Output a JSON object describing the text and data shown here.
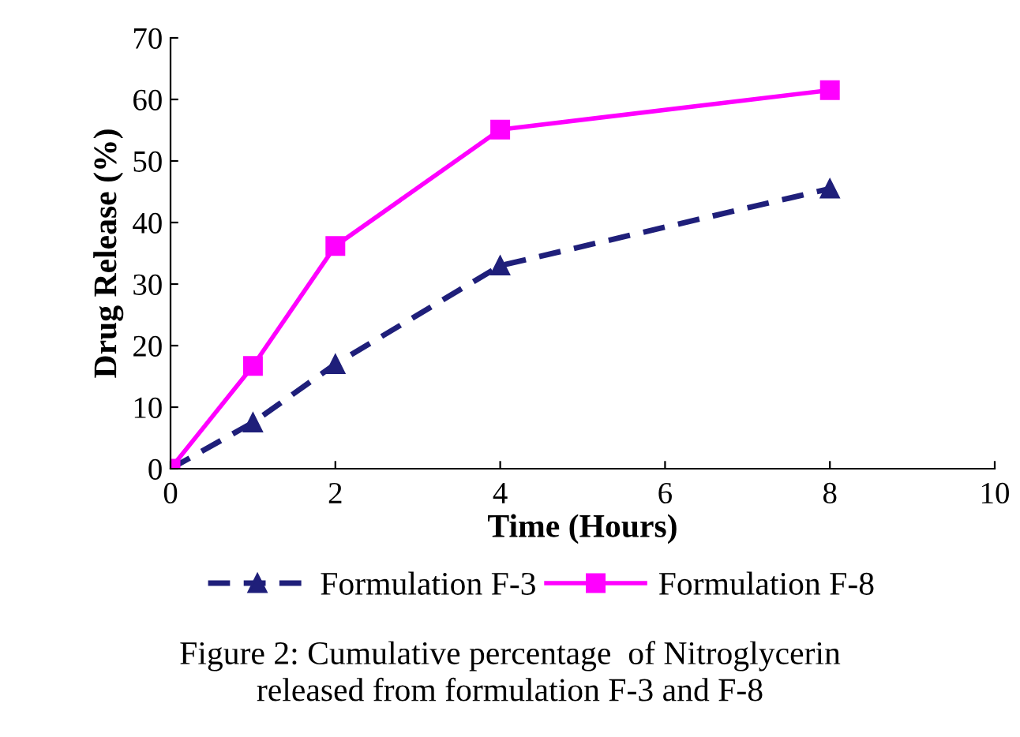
{
  "chart_data": {
    "type": "line",
    "xlabel": "Time (Hours)",
    "ylabel": "Drug Release (%)",
    "x": [
      0,
      1,
      2,
      4,
      8
    ],
    "series": [
      {
        "name": "Formulation F-3",
        "color": "#1f1f7a",
        "values": [
          0,
          7.5,
          17,
          33,
          45.5
        ],
        "marker": "triangle",
        "line_style": "dashed"
      },
      {
        "name": "Formulation F-8",
        "color": "#ff00ff",
        "values": [
          0,
          16.7,
          36.2,
          55.1,
          61.5
        ],
        "marker": "square",
        "line_style": "solid"
      }
    ],
    "xlim": [
      0,
      10
    ],
    "xticks": [
      0,
      2,
      4,
      6,
      8,
      10
    ],
    "ylim": [
      0,
      70
    ],
    "yticks": [
      0,
      10,
      20,
      30,
      40,
      50,
      60,
      70
    ],
    "grid": false,
    "legend": "bottom",
    "annotations": [
      "Figure 2: Cumulative percentage  of Nitroglycerin\nreleased from formulation F-3 and F-8"
    ]
  }
}
